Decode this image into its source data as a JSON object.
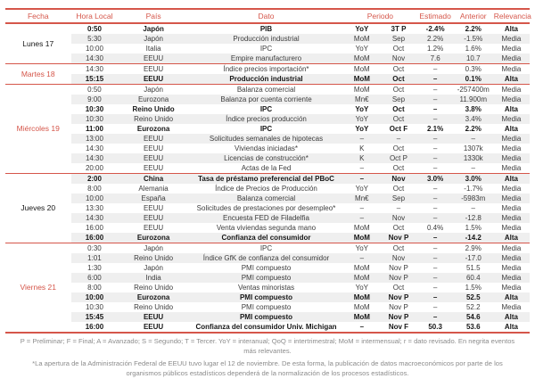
{
  "colors": {
    "accent": "#d5564a",
    "band": "#efefef",
    "text": "#3c3c3c",
    "muted": "#8c8c8c"
  },
  "columns": [
    "Fecha",
    "Hora Local",
    "País",
    "Dato",
    "Periodo",
    "Estimado",
    "Anterior",
    "Relevancia"
  ],
  "groups": [
    {
      "day": "Lunes 17",
      "rows": [
        {
          "time": "0:50",
          "country": "Japón",
          "dato": "PIB",
          "freq": "YoY",
          "period": "3T P",
          "est": "-2.4%",
          "prev": "2.2%",
          "rel": "Alta",
          "bold": true
        },
        {
          "time": "5:30",
          "country": "Japón",
          "dato": "Producción industrial",
          "freq": "MoM",
          "period": "Sep",
          "est": "2.2%",
          "prev": "-1.5%",
          "rel": "Media",
          "bold": false
        },
        {
          "time": "10:00",
          "country": "Italia",
          "dato": "IPC",
          "freq": "YoY",
          "period": "Oct",
          "est": "1.2%",
          "prev": "1.6%",
          "rel": "Media",
          "bold": false
        },
        {
          "time": "14:30",
          "country": "EEUU",
          "dato": "Empire manufacturero",
          "freq": "MoM",
          "period": "Nov",
          "est": "7.6",
          "prev": "10.7",
          "rel": "Media",
          "bold": false
        }
      ]
    },
    {
      "day": "Martes 18",
      "rows": [
        {
          "time": "14:30",
          "country": "EEUU",
          "dato": "Índice precios importación*",
          "freq": "MoM",
          "period": "Oct",
          "est": "–",
          "prev": "0.3%",
          "rel": "Media",
          "bold": false
        },
        {
          "time": "15:15",
          "country": "EEUU",
          "dato": "Producción industrial",
          "freq": "MoM",
          "period": "Oct",
          "est": "–",
          "prev": "0.1%",
          "rel": "Alta",
          "bold": true
        }
      ]
    },
    {
      "day": "Miércoles 19",
      "rows": [
        {
          "time": "0:50",
          "country": "Japón",
          "dato": "Balanza comercial",
          "freq": "MoM",
          "period": "Oct",
          "est": "–",
          "prev": "-257400m",
          "rel": "Media",
          "bold": false
        },
        {
          "time": "9:00",
          "country": "Eurozona",
          "dato": "Balanza por cuenta corriente",
          "freq": "Mn€",
          "period": "Sep",
          "est": "–",
          "prev": "11.900m",
          "rel": "Media",
          "bold": false
        },
        {
          "time": "10:30",
          "country": "Reino Unido",
          "dato": "IPC",
          "freq": "YoY",
          "period": "Oct",
          "est": "–",
          "prev": "3.8%",
          "rel": "Alta",
          "bold": true
        },
        {
          "time": "10:30",
          "country": "Reino Unido",
          "dato": "Índice precios producción",
          "freq": "YoY",
          "period": "Oct",
          "est": "–",
          "prev": "3.4%",
          "rel": "Media",
          "bold": false
        },
        {
          "time": "11:00",
          "country": "Eurozona",
          "dato": "IPC",
          "freq": "YoY",
          "period": "Oct F",
          "est": "2.1%",
          "prev": "2.2%",
          "rel": "Alta",
          "bold": true
        },
        {
          "time": "13:00",
          "country": "EEUU",
          "dato": "Solicitudes semanales de hipotecas",
          "freq": "–",
          "period": "–",
          "est": "–",
          "prev": "–",
          "rel": "Media",
          "bold": false
        },
        {
          "time": "14:30",
          "country": "EEUU",
          "dato": "Viviendas iniciadas*",
          "freq": "K",
          "period": "Oct",
          "est": "–",
          "prev": "1307k",
          "rel": "Media",
          "bold": false
        },
        {
          "time": "14:30",
          "country": "EEUU",
          "dato": "Licencias de construcción*",
          "freq": "K",
          "period": "Oct P",
          "est": "–",
          "prev": "1330k",
          "rel": "Media",
          "bold": false
        },
        {
          "time": "20:00",
          "country": "EEUU",
          "dato": "Actas de la Fed",
          "freq": "–",
          "period": "Oct",
          "est": "–",
          "prev": "–",
          "rel": "Media",
          "bold": false
        }
      ]
    },
    {
      "day": "Jueves 20",
      "rows": [
        {
          "time": "2:00",
          "country": "China",
          "dato": "Tasa de préstamo preferencial del PBoC",
          "freq": "–",
          "period": "Nov",
          "est": "3.0%",
          "prev": "3.0%",
          "rel": "Alta",
          "bold": true
        },
        {
          "time": "8:00",
          "country": "Alemania",
          "dato": "Índice de Precios de Producción",
          "freq": "YoY",
          "period": "Oct",
          "est": "–",
          "prev": "-1.7%",
          "rel": "Media",
          "bold": false
        },
        {
          "time": "10:00",
          "country": "España",
          "dato": "Balanza comercial",
          "freq": "Mn€",
          "period": "Sep",
          "est": "–",
          "prev": "-5983m",
          "rel": "Media",
          "bold": false
        },
        {
          "time": "13:30",
          "country": "EEUU",
          "dato": "Solicitudes de prestaciones por desempleo*",
          "freq": "–",
          "period": "–",
          "est": "–",
          "prev": "–",
          "rel": "Media",
          "bold": false
        },
        {
          "time": "14:30",
          "country": "EEUU",
          "dato": "Encuesta FED de Filadelfia",
          "freq": "–",
          "period": "Nov",
          "est": "–",
          "prev": "-12.8",
          "rel": "Media",
          "bold": false
        },
        {
          "time": "16:00",
          "country": "EEUU",
          "dato": "Venta viviendas segunda mano",
          "freq": "MoM",
          "period": "Oct",
          "est": "0.4%",
          "prev": "1.5%",
          "rel": "Media",
          "bold": false
        },
        {
          "time": "16:00",
          "country": "Eurozona",
          "dato": "Confianza del consumidor",
          "freq": "MoM",
          "period": "Nov P",
          "est": "–",
          "prev": "-14.2",
          "rel": "Alta",
          "bold": true
        }
      ]
    },
    {
      "day": "Viernes 21",
      "rows": [
        {
          "time": "0:30",
          "country": "Japón",
          "dato": "IPC",
          "freq": "YoY",
          "period": "Oct",
          "est": "–",
          "prev": "2.9%",
          "rel": "Media",
          "bold": false
        },
        {
          "time": "1:01",
          "country": "Reino Unido",
          "dato": "Índice GfK de confianza del consumidor",
          "freq": "–",
          "period": "Nov",
          "est": "–",
          "prev": "-17.0",
          "rel": "Media",
          "bold": false
        },
        {
          "time": "1:30",
          "country": "Japón",
          "dato": "PMI compuesto",
          "freq": "MoM",
          "period": "Nov P",
          "est": "–",
          "prev": "51.5",
          "rel": "Media",
          "bold": false
        },
        {
          "time": "6:00",
          "country": "India",
          "dato": "PMI compuesto",
          "freq": "MoM",
          "period": "Nov P",
          "est": "–",
          "prev": "60.4",
          "rel": "Media",
          "bold": false
        },
        {
          "time": "8:00",
          "country": "Reino Unido",
          "dato": "Ventas minoristas",
          "freq": "YoY",
          "period": "Oct",
          "est": "–",
          "prev": "1.5%",
          "rel": "Media",
          "bold": false
        },
        {
          "time": "10:00",
          "country": "Eurozona",
          "dato": "PMI compuesto",
          "freq": "MoM",
          "period": "Nov P",
          "est": "–",
          "prev": "52.5",
          "rel": "Alta",
          "bold": true
        },
        {
          "time": "10:30",
          "country": "Reino Unido",
          "dato": "PMI compuesto",
          "freq": "MoM",
          "period": "Nov P",
          "est": "–",
          "prev": "52.2",
          "rel": "Media",
          "bold": false
        },
        {
          "time": "15:45",
          "country": "EEUU",
          "dato": "PMI compuesto",
          "freq": "MoM",
          "period": "Nov P",
          "est": "–",
          "prev": "54.6",
          "rel": "Alta",
          "bold": true
        },
        {
          "time": "16:00",
          "country": "EEUU",
          "dato": "Confianza del consumidor Univ. Michigan",
          "freq": "–",
          "period": "Nov F",
          "est": "50.3",
          "prev": "53.6",
          "rel": "Alta",
          "bold": true
        }
      ]
    }
  ],
  "footnotes": {
    "legend": "P = Preliminar; F = Final; A = Avanzado; S = Segundo; T = Tercer. YoY = interanual; QoQ = intertrimestral; MoM = intermensual; r = dato revisado. En negrita eventos más relevantes.",
    "note": "*La apertura de la Administración Federal de EEUU tuvo lugar el 12 de noviembre. De esta forma, la publicación de datos macroeconómicos por parte de los organismos públicos estadísticos dependerá de la normalización de los procesos estadísticos."
  }
}
